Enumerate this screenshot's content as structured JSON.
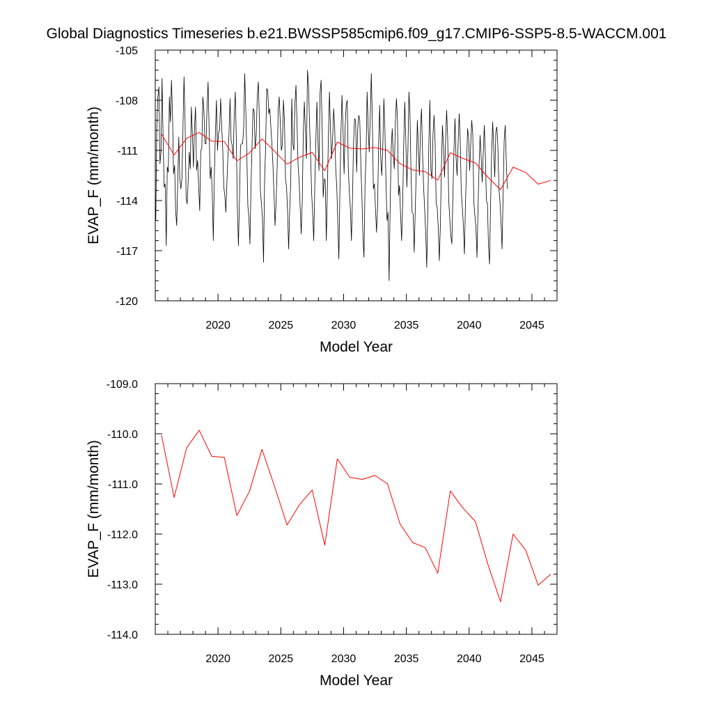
{
  "title": "Global Diagnostics Timeseries b.e21.BWSSP585cmip6.f09_g17.CMIP6-SSP5-8.5-WACCM.001",
  "colors": {
    "monthly": "#000000",
    "annual": "#ff0000",
    "frame": "#000000"
  },
  "chart_data": [
    {
      "type": "line",
      "name": "monthly-and-annual",
      "xlabel": "Model Year",
      "ylabel": "EVAP_F (mm/month)",
      "xlim": [
        2015,
        2047
      ],
      "ylim": [
        -120,
        -105
      ],
      "x_ticks": [
        2020,
        2025,
        2030,
        2035,
        2040,
        2045
      ],
      "y_ticks": [
        -105,
        -108,
        -111,
        -114,
        -117,
        -120
      ],
      "y_tick_labels": [
        "-105",
        "-108",
        "-111",
        "-114",
        "-117",
        "-120"
      ],
      "grid": false,
      "series": [
        {
          "role": "monthly",
          "x_start": 2015.04,
          "x_step": 0.0833333,
          "values": [
            -115.2,
            -109.5,
            -107.8,
            -107.2,
            -111.8,
            -111.1,
            -106.7,
            -110.2,
            -113.2,
            -113.0,
            -116.7,
            -112.0,
            -112.3,
            -107.8,
            -109.3,
            -106.8,
            -108.8,
            -112.4,
            -111.9,
            -114.6,
            -115.5,
            -112.9,
            -110.2,
            -112.7,
            -113.3,
            -112.7,
            -109.6,
            -106.6,
            -109.2,
            -113.8,
            -114.2,
            -112.8,
            -111.1,
            -112.1,
            -108.4,
            -110.0,
            -112.0,
            -109.7,
            -108.4,
            -112.2,
            -111.6,
            -113.2,
            -114.6,
            -111.0,
            -110.9,
            -107.8,
            -108.6,
            -110.6,
            -110.6,
            -108.4,
            -106.9,
            -109.8,
            -112.7,
            -112.0,
            -113.6,
            -116.4,
            -112.5,
            -109.9,
            -108.0,
            -111.0,
            -109.9,
            -109.8,
            -107.9,
            -109.6,
            -110.9,
            -113.2,
            -113.7,
            -114.7,
            -112.9,
            -111.3,
            -110.0,
            -107.9,
            -110.4,
            -110.7,
            -111.5,
            -108.9,
            -107.5,
            -110.4,
            -114.5,
            -116.7,
            -114.0,
            -110.7,
            -110.6,
            -110.6,
            -109.7,
            -106.4,
            -108.5,
            -111.1,
            -114.3,
            -115.0,
            -116.6,
            -113.2,
            -110.7,
            -108.5,
            -108.6,
            -110.9,
            -110.1,
            -107.8,
            -106.9,
            -109.0,
            -113.4,
            -114.2,
            -115.1,
            -117.7,
            -112.8,
            -110.8,
            -107.3,
            -107.4,
            -108.8,
            -108.5,
            -109.6,
            -110.6,
            -111.9,
            -113.6,
            -115.5,
            -114.1,
            -112.1,
            -108.5,
            -107.8,
            -109.3,
            -111.0,
            -110.7,
            -108.0,
            -109.2,
            -112.7,
            -113.2,
            -114.7,
            -116.9,
            -114.6,
            -112.9,
            -107.9,
            -110.6,
            -111.0,
            -108.2,
            -107.1,
            -109.4,
            -111.9,
            -112.8,
            -114.4,
            -116.0,
            -114.1,
            -110.0,
            -108.1,
            -109.8,
            -111.5,
            -106.2,
            -107.1,
            -109.4,
            -111.4,
            -113.6,
            -114.8,
            -116.4,
            -113.1,
            -110.4,
            -108.1,
            -110.4,
            -112.2,
            -107.6,
            -106.8,
            -109.5,
            -113.8,
            -112.7,
            -112.8,
            -116.4,
            -113.4,
            -110.2,
            -107.5,
            -109.8,
            -111.5,
            -110.4,
            -108.5,
            -109.6,
            -112.1,
            -113.2,
            -115.3,
            -117.5,
            -113.4,
            -109.9,
            -107.7,
            -109.8,
            -112.4,
            -109.6,
            -108.3,
            -108.0,
            -112.0,
            -113.5,
            -114.5,
            -116.4,
            -113.9,
            -110.6,
            -109.1,
            -109.2,
            -112.3,
            -109.7,
            -108.9,
            -109.2,
            -111.9,
            -113.7,
            -116.1,
            -117.4,
            -113.1,
            -111.3,
            -107.5,
            -109.6,
            -111.1,
            -109.0,
            -106.4,
            -109.2,
            -113.3,
            -113.0,
            -114.5,
            -115.9,
            -114.4,
            -110.7,
            -108.3,
            -111.4,
            -112.5,
            -110.7,
            -107.9,
            -109.7,
            -112.8,
            -115.2,
            -114.7,
            -118.8,
            -114.5,
            -110.9,
            -109.7,
            -111.3,
            -112.1,
            -109.4,
            -107.9,
            -109.1,
            -113.7,
            -113.1,
            -114.9,
            -116.4,
            -114.2,
            -110.6,
            -108.1,
            -110.4,
            -113.2,
            -111.0,
            -107.5,
            -108.9,
            -112.5,
            -114.7,
            -114.8,
            -117.1,
            -114.6,
            -112.1,
            -109.2,
            -110.9,
            -112.5,
            -109.7,
            -108.5,
            -111.2,
            -113.2,
            -114.5,
            -115.9,
            -118.0,
            -114.5,
            -110.6,
            -108.0,
            -112.2,
            -112.7,
            -110.0,
            -108.9,
            -110.6,
            -114.2,
            -114.4,
            -115.6,
            -117.6,
            -115.5,
            -112.0,
            -109.5,
            -110.8,
            -112.6,
            -110.4,
            -108.6,
            -110.2,
            -114.0,
            -115.1,
            -116.1,
            -116.6,
            -113.7,
            -111.0,
            -109.1,
            -111.4,
            -112.5,
            -110.6,
            -108.8,
            -110.4,
            -113.5,
            -114.4,
            -115.5,
            -117.2,
            -114.2,
            -112.0,
            -109.7,
            -110.2,
            -112.2,
            -110.7,
            -109.2,
            -110.1,
            -114.1,
            -114.9,
            -115.6,
            -117.4,
            -114.5,
            -111.9,
            -110.1,
            -111.4,
            -112.9,
            -111.2,
            -109.5,
            -111.2,
            -114.0,
            -114.2,
            -116.7,
            -117.8,
            -114.3,
            -111.2,
            -109.3,
            -110.9,
            -112.6,
            -109.9,
            -109.6,
            -110.8,
            -113.3,
            -114.1,
            -115.3,
            -116.9,
            -113.6,
            -110.4,
            -109.5,
            -111.6,
            -113.3
          ]
        },
        {
          "role": "annual",
          "x": [
            2015.5,
            2016.5,
            2017.5,
            2018.5,
            2019.5,
            2020.5,
            2021.5,
            2022.5,
            2023.5,
            2024.5,
            2025.5,
            2026.5,
            2027.5,
            2028.5,
            2029.5,
            2030.5,
            2031.5,
            2032.5,
            2033.5,
            2034.5,
            2035.5,
            2036.5,
            2037.5,
            2038.5,
            2039.5,
            2040.5,
            2041.5,
            2042.5,
            2043.5,
            2044.5,
            2045.5,
            2046.5
          ],
          "values": [
            -110.03,
            -111.27,
            -110.28,
            -109.93,
            -110.45,
            -110.47,
            -111.63,
            -111.15,
            -110.31,
            -111.05,
            -111.82,
            -111.41,
            -111.12,
            -112.22,
            -110.5,
            -110.87,
            -110.91,
            -110.83,
            -111.0,
            -111.8,
            -112.17,
            -112.27,
            -112.78,
            -111.14,
            -111.48,
            -111.75,
            -112.61,
            -113.35,
            -112.0,
            -112.32,
            -113.02,
            -112.8
          ]
        }
      ]
    },
    {
      "type": "line",
      "name": "annual",
      "xlabel": "Model Year",
      "ylabel": "EVAP_F (mm/month)",
      "xlim": [
        2015,
        2047
      ],
      "ylim": [
        -114,
        -109
      ],
      "x_ticks": [
        2020,
        2025,
        2030,
        2035,
        2040,
        2045
      ],
      "y_ticks": [
        -109,
        -110,
        -111,
        -112,
        -113,
        -114
      ],
      "y_tick_labels": [
        "-109.0",
        "-110.0",
        "-111.0",
        "-112.0",
        "-113.0",
        "-114.0"
      ],
      "grid": false,
      "series": [
        {
          "role": "annual",
          "x": [
            2015.5,
            2016.5,
            2017.5,
            2018.5,
            2019.5,
            2020.5,
            2021.5,
            2022.5,
            2023.5,
            2024.5,
            2025.5,
            2026.5,
            2027.5,
            2028.5,
            2029.5,
            2030.5,
            2031.5,
            2032.5,
            2033.5,
            2034.5,
            2035.5,
            2036.5,
            2037.5,
            2038.5,
            2039.5,
            2040.5,
            2041.5,
            2042.5,
            2043.5,
            2044.5,
            2045.5,
            2046.5
          ],
          "values": [
            -110.03,
            -111.27,
            -110.28,
            -109.93,
            -110.45,
            -110.47,
            -111.63,
            -111.15,
            -110.31,
            -111.05,
            -111.82,
            -111.41,
            -111.12,
            -112.22,
            -110.5,
            -110.87,
            -110.91,
            -110.83,
            -111.0,
            -111.8,
            -112.17,
            -112.27,
            -112.78,
            -111.14,
            -111.48,
            -111.75,
            -112.61,
            -113.35,
            -112.0,
            -112.32,
            -113.02,
            -112.8
          ]
        }
      ]
    }
  ]
}
